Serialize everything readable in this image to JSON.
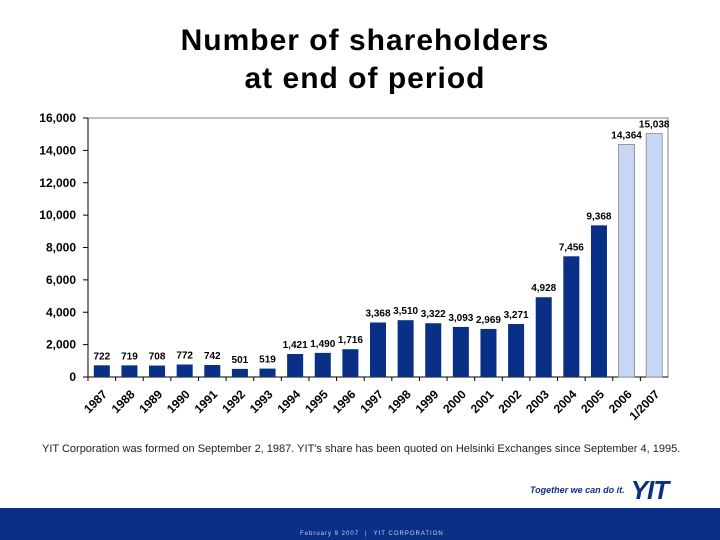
{
  "title": {
    "line1": "Number of shareholders",
    "line2": "at end of period"
  },
  "chart_data": {
    "type": "bar",
    "title": "Number of shareholders at end of period",
    "categories": [
      "1987",
      "1988",
      "1989",
      "1990",
      "1991",
      "1992",
      "1993",
      "1994",
      "1995",
      "1996",
      "1997",
      "1998",
      "1999",
      "2000",
      "2001",
      "2002",
      "2003",
      "2004",
      "2005",
      "2006",
      "1/2007"
    ],
    "values": [
      722,
      719,
      708,
      772,
      742,
      501,
      519,
      1421,
      1490,
      1716,
      3368,
      3510,
      3322,
      3093,
      2969,
      3271,
      4928,
      7456,
      9368,
      14364,
      15038
    ],
    "value_labels": [
      "722",
      "719",
      "708",
      "772",
      "742",
      "501",
      "519",
      "1,421",
      "1,490",
      "1,716",
      "3,368",
      "3,510",
      "3,322",
      "3,093",
      "2,969",
      "3,271",
      "4,928",
      "7,456",
      "9,368",
      "14,364",
      "15,038"
    ],
    "highlighted": [
      false,
      false,
      false,
      false,
      false,
      false,
      false,
      false,
      false,
      false,
      false,
      false,
      false,
      false,
      false,
      false,
      false,
      false,
      false,
      true,
      true
    ],
    "yticks": [
      "0",
      "2,000",
      "4,000",
      "6,000",
      "8,000",
      "10,000",
      "12,000",
      "14,000",
      "16,000"
    ],
    "ytick_values": [
      0,
      2000,
      4000,
      6000,
      8000,
      10000,
      12000,
      14000,
      16000
    ],
    "ylim": [
      0,
      16000
    ],
    "xlabel": "",
    "ylabel": "",
    "colors": {
      "bar": "#0a2f87",
      "bar_highlight": "#c7d6f5",
      "bar_outline": "#888888"
    }
  },
  "note": "YIT Corporation was formed on September 2, 1987. YIT's share has been quoted on Helsinki Exchanges since September 4, 1995.",
  "logo": {
    "slogan": "Together we can do it.",
    "name": "YIT"
  },
  "footer": {
    "date": "February 9 2007",
    "separator": "|",
    "company": "YIT CORPORATION"
  }
}
